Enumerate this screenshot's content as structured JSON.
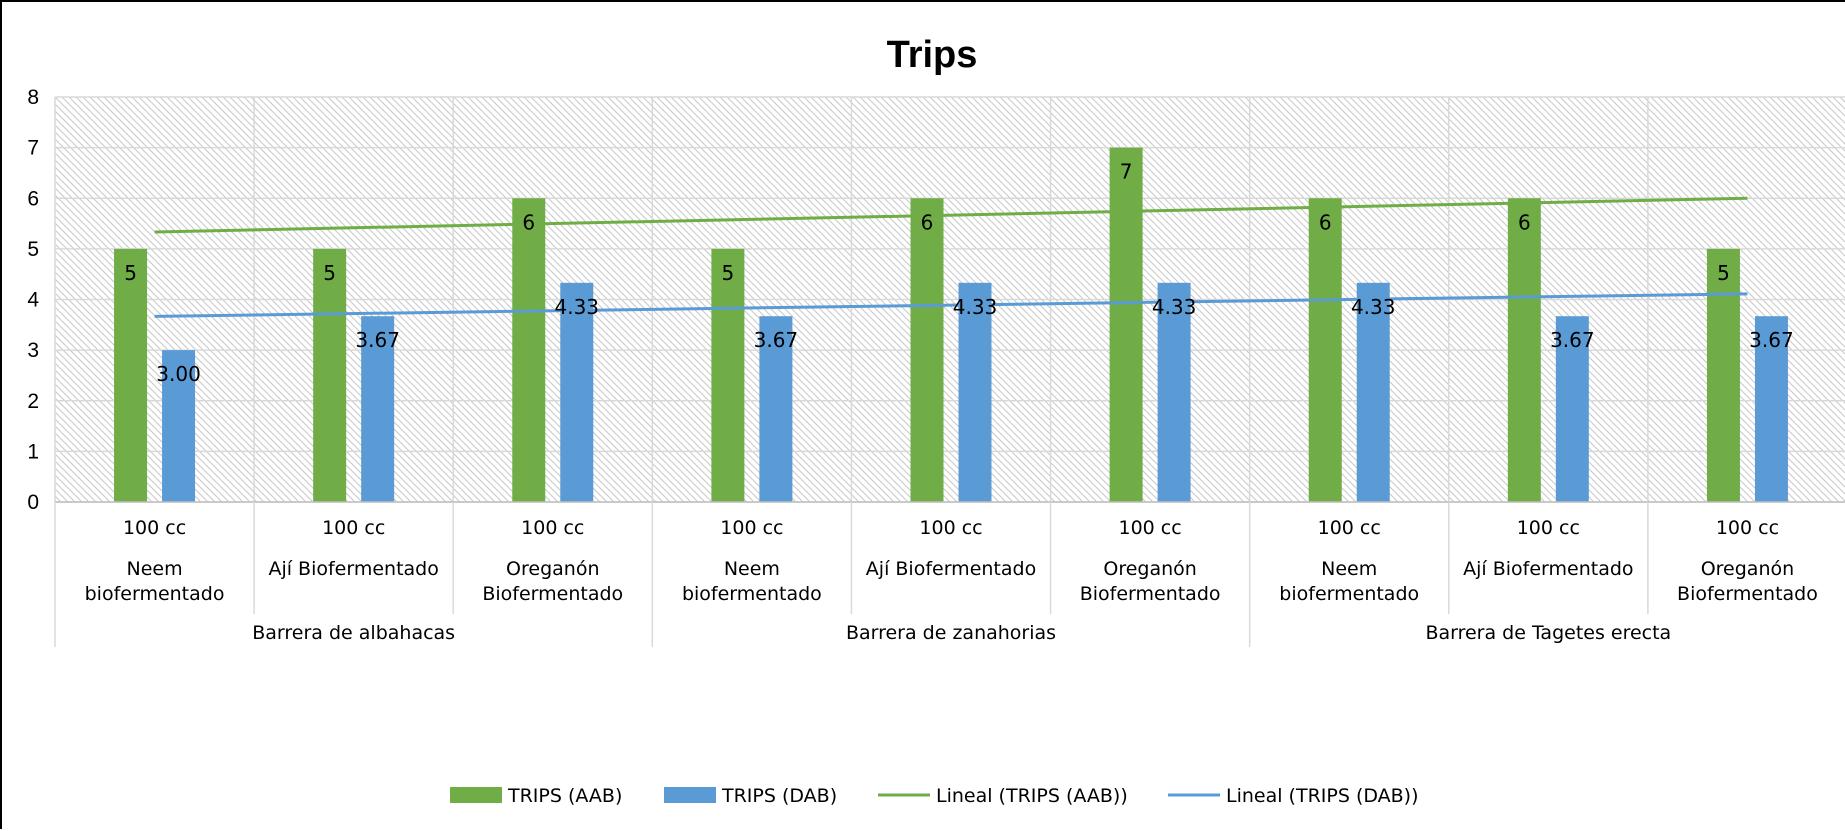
{
  "chart_data": {
    "type": "bar",
    "title": "Trips",
    "ylim": [
      0,
      8
    ],
    "yticks": [
      "0",
      "1",
      "2",
      "3",
      "4",
      "5",
      "6",
      "7",
      "8"
    ],
    "grid": true,
    "legend_position": "bottom",
    "categories": [
      {
        "dose": "100 cc",
        "treatment": [
          "Neem",
          "biofermentado"
        ],
        "group": "Barrera de albahacas"
      },
      {
        "dose": "100 cc",
        "treatment": [
          "Ají Biofermentado"
        ],
        "group": "Barrera de albahacas"
      },
      {
        "dose": "100 cc",
        "treatment": [
          "Oreganón",
          "Biofermentado"
        ],
        "group": "Barrera de albahacas"
      },
      {
        "dose": "100 cc",
        "treatment": [
          "Neem",
          "biofermentado"
        ],
        "group": "Barrera de zanahorias"
      },
      {
        "dose": "100 cc",
        "treatment": [
          "Ají Biofermentado"
        ],
        "group": "Barrera de zanahorias"
      },
      {
        "dose": "100 cc",
        "treatment": [
          "Oreganón",
          "Biofermentado"
        ],
        "group": "Barrera de zanahorias"
      },
      {
        "dose": "100 cc",
        "treatment": [
          "Neem",
          "biofermentado"
        ],
        "group": "Barrera de Tagetes erecta"
      },
      {
        "dose": "100 cc",
        "treatment": [
          "Ají Biofermentado"
        ],
        "group": "Barrera de Tagetes erecta"
      },
      {
        "dose": "100 cc",
        "treatment": [
          "Oreganón",
          "Biofermentado"
        ],
        "group": "Barrera de Tagetes erecta"
      }
    ],
    "groups": [
      "Barrera de albahacas",
      "Barrera de zanahorias",
      "Barrera de Tagetes erecta"
    ],
    "series": [
      {
        "name": "TRIPS (AAB)",
        "color": "#70AD47",
        "values": [
          5,
          5,
          6,
          5,
          6,
          7,
          6,
          6,
          5
        ],
        "labels": [
          "5",
          "5",
          "6",
          "5",
          "6",
          "7",
          "6",
          "6",
          "5"
        ]
      },
      {
        "name": "TRIPS (DAB)",
        "color": "#5B9BD5",
        "values": [
          3.0,
          3.67,
          4.33,
          3.67,
          4.33,
          4.33,
          4.33,
          3.67,
          3.67
        ],
        "labels": [
          "3.00",
          "3.67",
          "4.33",
          "3.67",
          "4.33",
          "4.33",
          "4.33",
          "3.67",
          "3.67"
        ]
      }
    ],
    "trendlines": [
      {
        "name": "Lineal (TRIPS (AAB))",
        "color": "#70AD47",
        "type": "linear",
        "of": "TRIPS (AAB)"
      },
      {
        "name": "Lineal (TRIPS (DAB))",
        "color": "#5B9BD5",
        "type": "linear",
        "of": "TRIPS (DAB)"
      }
    ]
  }
}
